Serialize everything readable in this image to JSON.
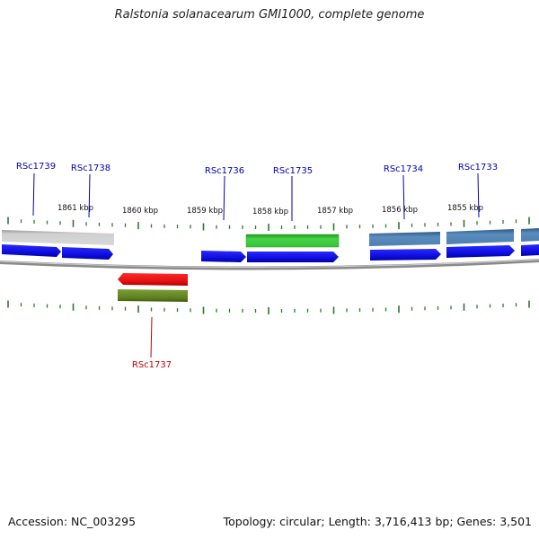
{
  "title": "Ralstonia solanacearum GMI1000, complete genome",
  "footer": {
    "accession": "Accession: NC_003295",
    "summary": "Topology: circular; Length: 3,716,413 bp; Genes: 3,501"
  },
  "colors": {
    "cds": "#1010e8",
    "gene_gray": "#bdbdbd",
    "gene_green": "#3ec83e",
    "gene_steel": "#4f82b4",
    "gene_red": "#ee1010",
    "gene_olive": "#6b8c28",
    "ticks": "#2a7a2a",
    "label_forward": "#0000b0",
    "label_reverse": "#c00000",
    "backbone": "#8a8a8a"
  },
  "scale_labels": [
    "1861 kbp",
    "1860 kbp",
    "1859 kbp",
    "1858 kbp",
    "1857 kbp",
    "1856 kbp",
    "1855 kbp"
  ],
  "gene_labels": {
    "forward": [
      "RSc1739",
      "RSc1738",
      "RSc1736",
      "RSc1735",
      "RSc1734",
      "RSc1733"
    ],
    "reverse": [
      "RSc1737"
    ]
  }
}
